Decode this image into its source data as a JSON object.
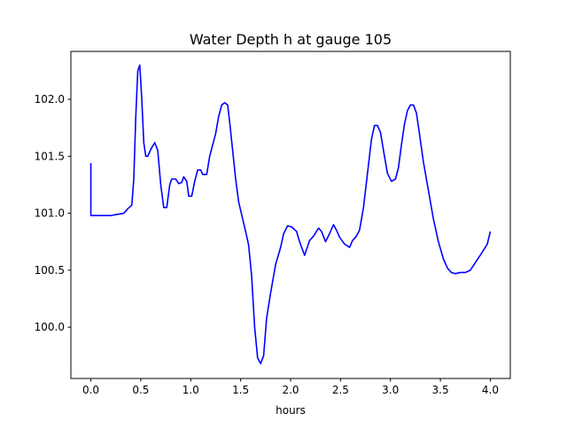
{
  "chart_data": {
    "type": "line",
    "title": "Water Depth h at gauge 105",
    "xlabel": "hours",
    "ylabel": "",
    "xlim": [
      -0.2,
      4.2
    ],
    "ylim": [
      99.55,
      102.42
    ],
    "xticks": [
      0.0,
      0.5,
      1.0,
      1.5,
      2.0,
      2.5,
      3.0,
      3.5,
      4.0
    ],
    "xtick_labels": [
      "0.0",
      "0.5",
      "1.0",
      "1.5",
      "2.0",
      "2.5",
      "3.0",
      "3.5",
      "4.0"
    ],
    "yticks": [
      100.0,
      100.5,
      101.0,
      101.5,
      102.0
    ],
    "ytick_labels": [
      "100.0",
      "100.5",
      "101.0",
      "101.5",
      "102.0"
    ],
    "grid": false,
    "line_color": "#0000ff",
    "series": [
      {
        "x": [
          0.0,
          0.0,
          0.2,
          0.33,
          0.37,
          0.41,
          0.43,
          0.45,
          0.47,
          0.49,
          0.51,
          0.53,
          0.55,
          0.57,
          0.6,
          0.64,
          0.67,
          0.7,
          0.73,
          0.76,
          0.79,
          0.81,
          0.85,
          0.88,
          0.91,
          0.93,
          0.96,
          0.98,
          1.01,
          1.04,
          1.07,
          1.1,
          1.12,
          1.16,
          1.19,
          1.22,
          1.25,
          1.28,
          1.31,
          1.34,
          1.37,
          1.39,
          1.42,
          1.45,
          1.48,
          1.52,
          1.55,
          1.58,
          1.61,
          1.64,
          1.67,
          1.7,
          1.73,
          1.76,
          1.8,
          1.85,
          1.9,
          1.93,
          1.97,
          2.01,
          2.06,
          2.09,
          2.14,
          2.19,
          2.23,
          2.28,
          2.31,
          2.35,
          2.39,
          2.43,
          2.46,
          2.49,
          2.54,
          2.59,
          2.62,
          2.66,
          2.69,
          2.73,
          2.77,
          2.81,
          2.84,
          2.87,
          2.9,
          2.94,
          2.97,
          3.01,
          3.05,
          3.08,
          3.11,
          3.14,
          3.17,
          3.2,
          3.23,
          3.26,
          3.29,
          3.33,
          3.38,
          3.43,
          3.48,
          3.53,
          3.57,
          3.61,
          3.65,
          3.7,
          3.75,
          3.8,
          3.86,
          3.92,
          3.97,
          4.0
        ],
        "y": [
          101.44,
          100.98,
          100.98,
          101.0,
          101.04,
          101.07,
          101.3,
          101.85,
          102.25,
          102.3,
          102.0,
          101.62,
          101.5,
          101.5,
          101.56,
          101.62,
          101.55,
          101.25,
          101.05,
          101.05,
          101.25,
          101.3,
          101.3,
          101.26,
          101.27,
          101.32,
          101.28,
          101.15,
          101.15,
          101.28,
          101.38,
          101.38,
          101.34,
          101.34,
          101.5,
          101.6,
          101.7,
          101.85,
          101.95,
          101.97,
          101.95,
          101.8,
          101.55,
          101.3,
          101.1,
          100.95,
          100.84,
          100.72,
          100.45,
          100.0,
          99.73,
          99.68,
          99.75,
          100.08,
          100.3,
          100.55,
          100.7,
          100.82,
          100.89,
          100.88,
          100.84,
          100.75,
          100.63,
          100.76,
          100.8,
          100.87,
          100.84,
          100.75,
          100.82,
          100.9,
          100.85,
          100.79,
          100.73,
          100.7,
          100.76,
          100.8,
          100.85,
          101.05,
          101.35,
          101.65,
          101.77,
          101.77,
          101.71,
          101.5,
          101.35,
          101.28,
          101.3,
          101.4,
          101.6,
          101.78,
          101.9,
          101.95,
          101.95,
          101.88,
          101.7,
          101.45,
          101.2,
          100.95,
          100.75,
          100.6,
          100.52,
          100.48,
          100.47,
          100.48,
          100.48,
          100.5,
          100.58,
          100.66,
          100.73,
          100.84
        ]
      }
    ]
  }
}
